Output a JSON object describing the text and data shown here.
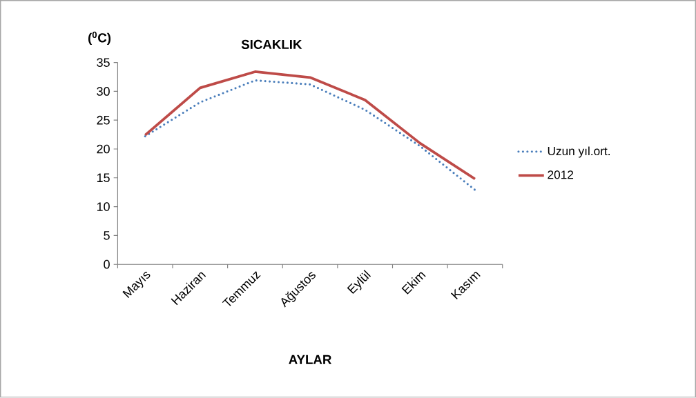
{
  "chart_data": {
    "type": "line",
    "title": "SICAKLIK",
    "ylabel": "($^{0}$C)",
    "xlabel": "AYLAR",
    "categories": [
      "Mayıs",
      "Haziran",
      "Temmuz",
      "Ağustos",
      "Eylül",
      "Ekim",
      "Kasım"
    ],
    "series": [
      {
        "name": "Uzun yıl.ort.",
        "color": "#4a7ebb",
        "line_style": "dotted",
        "values": [
          22.2,
          28.1,
          31.9,
          31.2,
          26.8,
          20.5,
          12.9
        ]
      },
      {
        "name": "2012",
        "color": "#be4b48",
        "line_style": "solid",
        "values": [
          22.4,
          30.6,
          33.4,
          32.4,
          28.5,
          21.0,
          14.8
        ]
      }
    ],
    "ylim": [
      0,
      35
    ],
    "yticks": [
      0,
      5,
      10,
      15,
      20,
      25,
      30,
      35
    ],
    "grid": false,
    "legend": "right",
    "marker": "none"
  }
}
